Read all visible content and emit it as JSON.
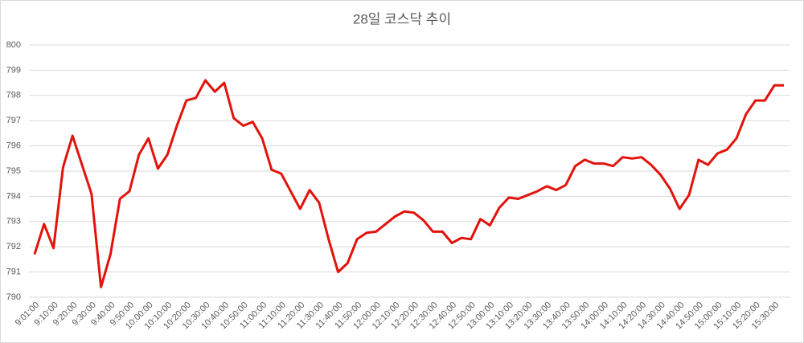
{
  "chart_data": {
    "type": "line",
    "title": "28일 코스닥 추이",
    "categories": [
      "9:01:00",
      null,
      "9:10:00",
      null,
      "9:20:00",
      null,
      "9:30:00",
      null,
      "9:40:00",
      null,
      "9:50:00",
      null,
      "10:00:00",
      null,
      "10:10:00",
      null,
      "10:20:00",
      null,
      "10:30:00",
      null,
      "10:40:00",
      null,
      "10:50:00",
      null,
      "11:00:00",
      null,
      "11:10:00",
      null,
      "11:20:00",
      null,
      "11:30:00",
      null,
      "11:40:00",
      null,
      "11:50:00",
      null,
      "12:00:00",
      null,
      "12:10:00",
      null,
      "12:20:00",
      null,
      "12:30:00",
      null,
      "12:40:00",
      null,
      "12:50:00",
      null,
      "13:00:00",
      null,
      "13:10:00",
      null,
      "13:20:00",
      null,
      "13:30:00",
      null,
      "13:40:00",
      null,
      "13:50:00",
      null,
      "14:00:00",
      null,
      "14:10:00",
      null,
      "14:20:00",
      null,
      "14:30:00",
      null,
      "14:40:00",
      null,
      "14:50:00",
      null,
      "15:00:00",
      null,
      "15:10:00",
      null,
      "15:20:00",
      null,
      "15:30:00",
      null
    ],
    "values": [
      791.7,
      792.9,
      791.95,
      795.15,
      796.4,
      795.25,
      794.1,
      790.4,
      791.7,
      793.9,
      794.2,
      795.65,
      796.3,
      795.1,
      795.65,
      796.8,
      797.8,
      797.9,
      798.6,
      798.15,
      798.5,
      797.1,
      796.8,
      796.95,
      796.3,
      795.05,
      794.9,
      794.2,
      793.5,
      794.25,
      793.75,
      792.3,
      791.0,
      791.35,
      792.3,
      792.55,
      792.6,
      792.9,
      793.2,
      793.4,
      793.35,
      793.05,
      792.6,
      792.6,
      792.15,
      792.35,
      792.3,
      793.1,
      792.85,
      793.55,
      793.95,
      793.9,
      794.05,
      794.2,
      794.4,
      794.25,
      794.45,
      795.2,
      795.45,
      795.3,
      795.3,
      795.2,
      795.55,
      795.5,
      795.55,
      795.25,
      794.85,
      794.3,
      793.5,
      794.05,
      795.45,
      795.25,
      795.7,
      795.85,
      796.3,
      797.25,
      797.8,
      797.8,
      798.4,
      798.4
    ],
    "color": "#e3120b",
    "ylim": [
      790,
      800
    ],
    "yticks": [
      790,
      791,
      792,
      793,
      794,
      795,
      796,
      797,
      798,
      799,
      800
    ],
    "grid": true
  }
}
